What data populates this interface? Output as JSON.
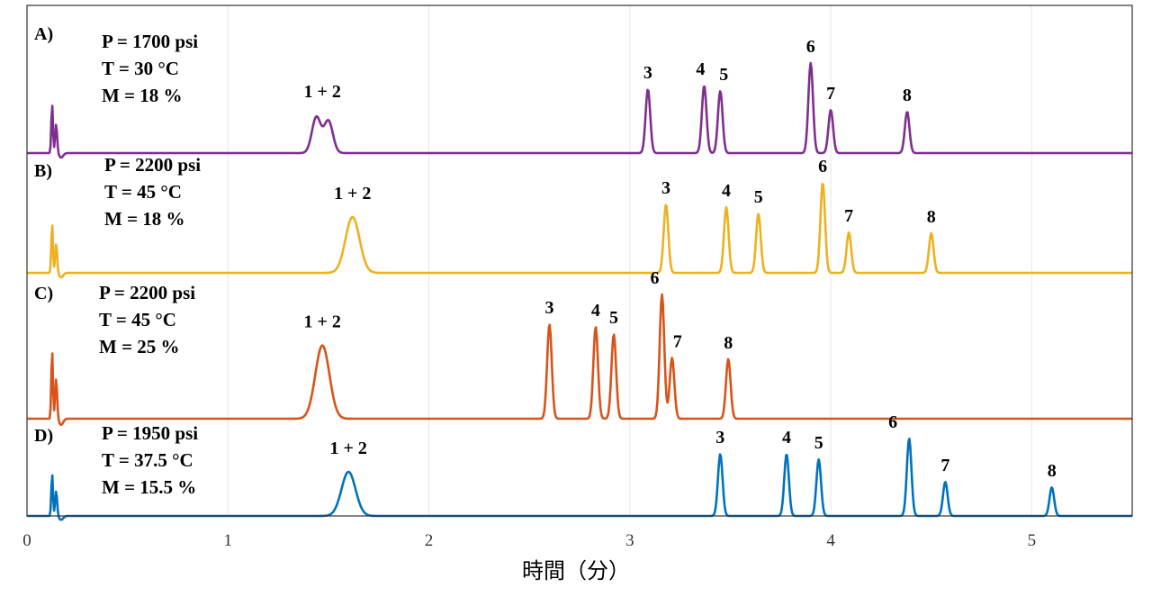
{
  "chart_data": {
    "type": "line",
    "xlabel": "時間（分）",
    "xlim": [
      0,
      5.5
    ],
    "x_ticks": [
      "0",
      "1",
      "2",
      "3",
      "4",
      "5"
    ],
    "grid": true,
    "series": [
      {
        "panel": "A)",
        "color": "#7e2f8e",
        "conditions": [
          "P = 1700 psi",
          "T = 30 °C",
          "M = 18 %"
        ],
        "peaks": [
          {
            "label": "1 + 2",
            "x": 1.47,
            "height": 0.42
          },
          {
            "label": "3",
            "x": 3.09,
            "height": 0.71
          },
          {
            "label": "4",
            "x": 3.37,
            "height": 0.75
          },
          {
            "label": "5",
            "x": 3.45,
            "height": 0.69
          },
          {
            "label": "6",
            "x": 3.9,
            "height": 1.0
          },
          {
            "label": "7",
            "x": 4.0,
            "height": 0.48
          },
          {
            "label": "8",
            "x": 4.38,
            "height": 0.46
          }
        ]
      },
      {
        "panel": "B)",
        "color": "#edb120",
        "conditions": [
          "P = 2200 psi",
          "T = 45 °C",
          "M = 18 %"
        ],
        "peaks": [
          {
            "label": "1 + 2",
            "x": 1.62,
            "height": 0.62
          },
          {
            "label": "3",
            "x": 3.18,
            "height": 0.76
          },
          {
            "label": "4",
            "x": 3.48,
            "height": 0.73
          },
          {
            "label": "5",
            "x": 3.64,
            "height": 0.66
          },
          {
            "label": "6",
            "x": 3.96,
            "height": 1.0
          },
          {
            "label": "7",
            "x": 4.09,
            "height": 0.45
          },
          {
            "label": "8",
            "x": 4.5,
            "height": 0.44
          }
        ]
      },
      {
        "panel": "C)",
        "color": "#d95319",
        "conditions": [
          "P = 2200 psi",
          "T = 45 °C",
          "M = 25 %"
        ],
        "peaks": [
          {
            "label": "1 + 2",
            "x": 1.47,
            "height": 0.59
          },
          {
            "label": "3",
            "x": 2.6,
            "height": 0.76
          },
          {
            "label": "4",
            "x": 2.83,
            "height": 0.74
          },
          {
            "label": "5",
            "x": 2.92,
            "height": 0.68
          },
          {
            "label": "6",
            "x": 3.16,
            "height": 1.0
          },
          {
            "label": "7",
            "x": 3.21,
            "height": 0.49
          },
          {
            "label": "8",
            "x": 3.49,
            "height": 0.48
          }
        ]
      },
      {
        "panel": "D)",
        "color": "#0072bd",
        "conditions": [
          "P = 1950 psi",
          "T = 37.5 °C",
          "M = 15.5 %"
        ],
        "peaks": [
          {
            "label": "1 + 2",
            "x": 1.6,
            "height": 0.57
          },
          {
            "label": "3",
            "x": 3.45,
            "height": 0.8
          },
          {
            "label": "4",
            "x": 3.78,
            "height": 0.8
          },
          {
            "label": "5",
            "x": 3.94,
            "height": 0.73
          },
          {
            "label": "6",
            "x": 4.39,
            "height": 1.0
          },
          {
            "label": "7",
            "x": 4.57,
            "height": 0.44
          },
          {
            "label": "8",
            "x": 5.1,
            "height": 0.37
          }
        ]
      }
    ]
  }
}
